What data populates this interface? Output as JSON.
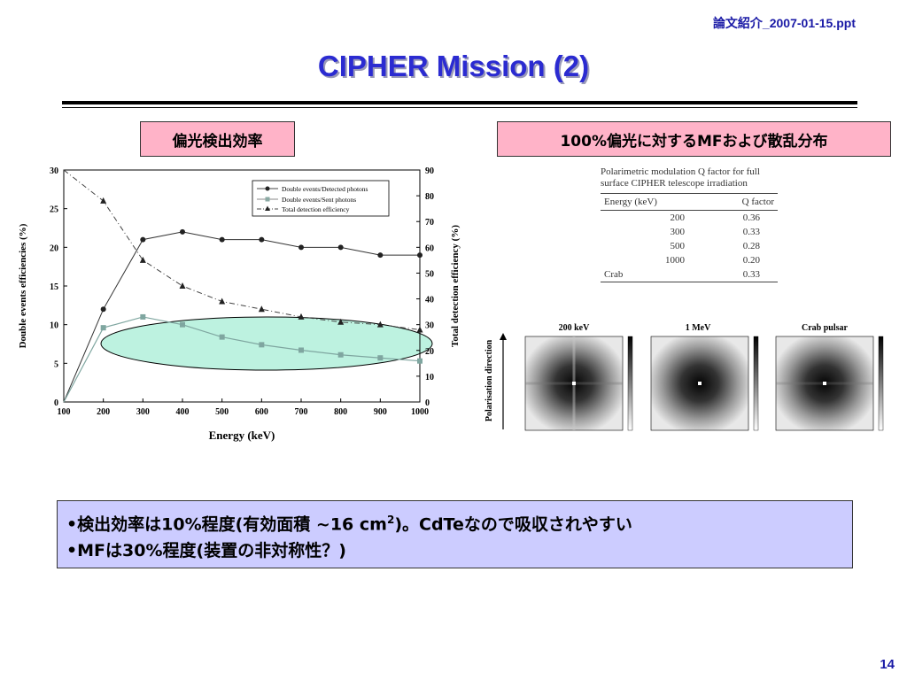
{
  "header": {
    "filename": "論文紹介_2007-01-15.ppt",
    "title": "CIPHER Mission (2)"
  },
  "labels": {
    "left": "偏光検出効率",
    "right": "100%偏光に対するMFおよび散乱分布"
  },
  "chart_data": {
    "type": "line",
    "x": [
      100,
      200,
      300,
      400,
      500,
      600,
      700,
      800,
      900,
      1000
    ],
    "xlabel": "Energy (keV)",
    "ylabel_left": "Double events efficiencies (%)",
    "ylabel_right": "Total detection efficiency (%)",
    "xlim": [
      100,
      1000
    ],
    "ylim_left": [
      0,
      30
    ],
    "ylim_right": [
      0,
      90
    ],
    "xticks": [
      "100",
      "200",
      "300",
      "400",
      "500",
      "600",
      "700",
      "800",
      "900",
      "1000"
    ],
    "yticks_left": [
      "0",
      "5",
      "10",
      "15",
      "20",
      "25",
      "30"
    ],
    "yticks_right": [
      "0",
      "10",
      "20",
      "30",
      "40",
      "50",
      "60",
      "70",
      "80",
      "90"
    ],
    "legend_position": "top-right",
    "series": [
      {
        "name": "Double events/Detected photons",
        "axis": "left",
        "marker": "circle",
        "values": [
          0,
          12,
          21,
          22,
          21,
          21,
          20,
          20,
          19,
          19
        ]
      },
      {
        "name": "Double events/Sent photons",
        "axis": "left",
        "marker": "square",
        "values": [
          0,
          9.6,
          11,
          10,
          8.4,
          7.4,
          6.7,
          6.1,
          5.7,
          5.3
        ]
      },
      {
        "name": "Total detection efficiency",
        "axis": "right",
        "marker": "triangle",
        "values": [
          90,
          78,
          55,
          45,
          39,
          36,
          33,
          31,
          30,
          28
        ]
      }
    ],
    "highlight_color": "#bdf2e0"
  },
  "qtable": {
    "caption_line1": "Polarimetric modulation Q factor for full",
    "caption_line2": "surface CIPHER telescope irradiation",
    "col1": "Energy (keV)",
    "col2": "Q factor",
    "rows": [
      {
        "energy": "200",
        "q": "0.36"
      },
      {
        "energy": "300",
        "q": "0.33"
      },
      {
        "energy": "500",
        "q": "0.28"
      },
      {
        "energy": "1000",
        "q": "0.20"
      },
      {
        "energy": "Crab",
        "q": "0.33"
      }
    ]
  },
  "maps": {
    "axis_label": "Polarisation direction",
    "panels": [
      {
        "title": "200 keV"
      },
      {
        "title": "1 MeV"
      },
      {
        "title": "Crab pulsar"
      }
    ]
  },
  "bullets": {
    "line1_a": "•検出効率は10%程度(有効面積 ~16 cm",
    "line1_sup": "2",
    "line1_b": ")。CdTeなので吸収されやすい",
    "line2": "•MFは30%程度(装置の非対称性？)"
  },
  "page_number": "14"
}
